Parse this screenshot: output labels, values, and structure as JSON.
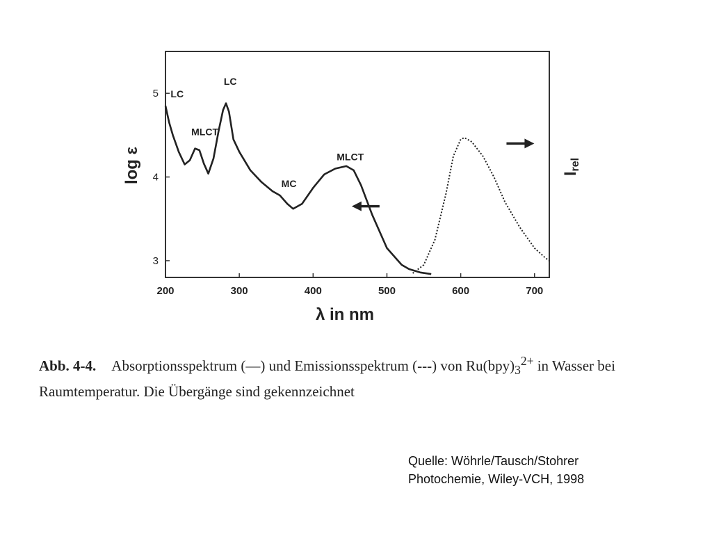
{
  "chart_data": {
    "type": "line",
    "xlabel": "λ in nm",
    "ylabel": "log ε",
    "y2label": "I",
    "y2label_sub": "rel",
    "xlim": [
      200,
      720
    ],
    "ylim": [
      2.8,
      5.5
    ],
    "xticks": [
      "200",
      "300",
      "400",
      "500",
      "600",
      "700"
    ],
    "yticks": [
      "3",
      "4",
      "5"
    ],
    "grid": false,
    "series": [
      {
        "style": "solid",
        "axis": "left",
        "x": [
          200,
          205,
          210,
          218,
          226,
          233,
          240,
          246,
          252,
          258,
          265,
          272,
          278,
          282,
          286,
          292,
          300,
          315,
          330,
          345,
          355,
          365,
          373,
          385,
          400,
          415,
          430,
          445,
          455,
          465,
          480,
          500,
          520,
          530,
          545,
          560
        ],
        "y": [
          4.85,
          4.65,
          4.5,
          4.3,
          4.15,
          4.2,
          4.34,
          4.32,
          4.16,
          4.04,
          4.22,
          4.55,
          4.8,
          4.88,
          4.78,
          4.45,
          4.3,
          4.08,
          3.94,
          3.83,
          3.78,
          3.68,
          3.62,
          3.68,
          3.87,
          4.03,
          4.1,
          4.13,
          4.08,
          3.9,
          3.55,
          3.15,
          2.95,
          2.9,
          2.86,
          2.84
        ]
      },
      {
        "style": "dotted",
        "axis": "right",
        "x": [
          535,
          550,
          565,
          580,
          590,
          600,
          605,
          615,
          630,
          645,
          660,
          680,
          700,
          715,
          720
        ],
        "y": [
          2.85,
          2.95,
          3.25,
          3.8,
          4.25,
          4.45,
          4.47,
          4.42,
          4.25,
          4.0,
          3.7,
          3.4,
          3.15,
          3.03,
          3.0
        ]
      }
    ],
    "annotations": [
      {
        "text": "LC",
        "x": 207,
        "y": 4.95
      },
      {
        "text": "MLCT",
        "x": 235,
        "y": 4.5
      },
      {
        "text": "LC",
        "x": 279,
        "y": 5.1
      },
      {
        "text": "MC",
        "x": 357,
        "y": 3.88
      },
      {
        "text": "MLCT",
        "x": 432,
        "y": 4.2
      }
    ],
    "arrows": [
      {
        "direction": "left",
        "x": 490,
        "y": 3.65
      },
      {
        "direction": "right",
        "x": 662,
        "y": 4.4
      }
    ]
  },
  "caption": {
    "label": "Abb. 4-4.",
    "text": "Absorptionsspektrum (—) und Emissionsspektrum (---) von Ru(bpy)",
    "sub": "3",
    "sup": "2+",
    "text_end": " in Wasser bei Raumtemperatur. Die Übergänge sind gekennzeichnet"
  },
  "source": {
    "line1": "Quelle: Wöhrle/Tausch/Stohrer",
    "line2": "Photochemie, Wiley-VCH, 1998"
  }
}
